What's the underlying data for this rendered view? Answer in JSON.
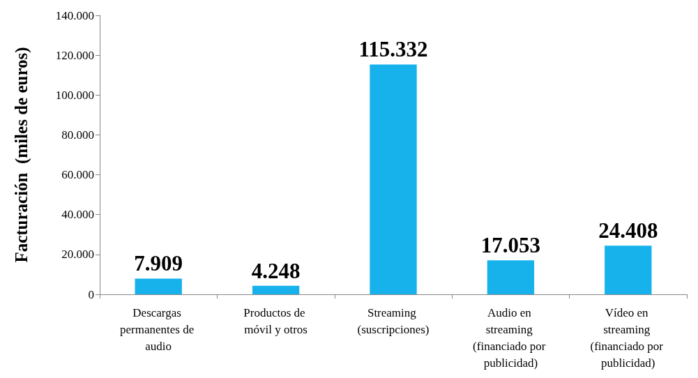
{
  "chart_data": {
    "type": "bar",
    "ylabel": "Facturación  (miles de euros)",
    "categories": [
      "Descargas permanentes de audio",
      "Productos de móvil y otros",
      "Streaming (suscripciones)",
      "Audio en streaming (financiado por publicidad)",
      "Vídeo en streaming (financiado por publicidad)"
    ],
    "values": [
      7909,
      4248,
      115332,
      17053,
      24408
    ],
    "value_labels": [
      "7.909",
      "4.248",
      "115.332",
      "17.053",
      "24.408"
    ],
    "color": "#17b2ec",
    "ylim": [
      0,
      140000
    ],
    "yticks": [
      {
        "value": 0,
        "label": "0"
      },
      {
        "value": 20000,
        "label": "20.000"
      },
      {
        "value": 40000,
        "label": "40.000"
      },
      {
        "value": 60000,
        "label": "60.000"
      },
      {
        "value": 80000,
        "label": "80.000"
      },
      {
        "value": 100000,
        "label": "100.000"
      },
      {
        "value": 120000,
        "label": "120.000"
      },
      {
        "value": 140000,
        "label": "140.000"
      }
    ],
    "grid": false
  }
}
